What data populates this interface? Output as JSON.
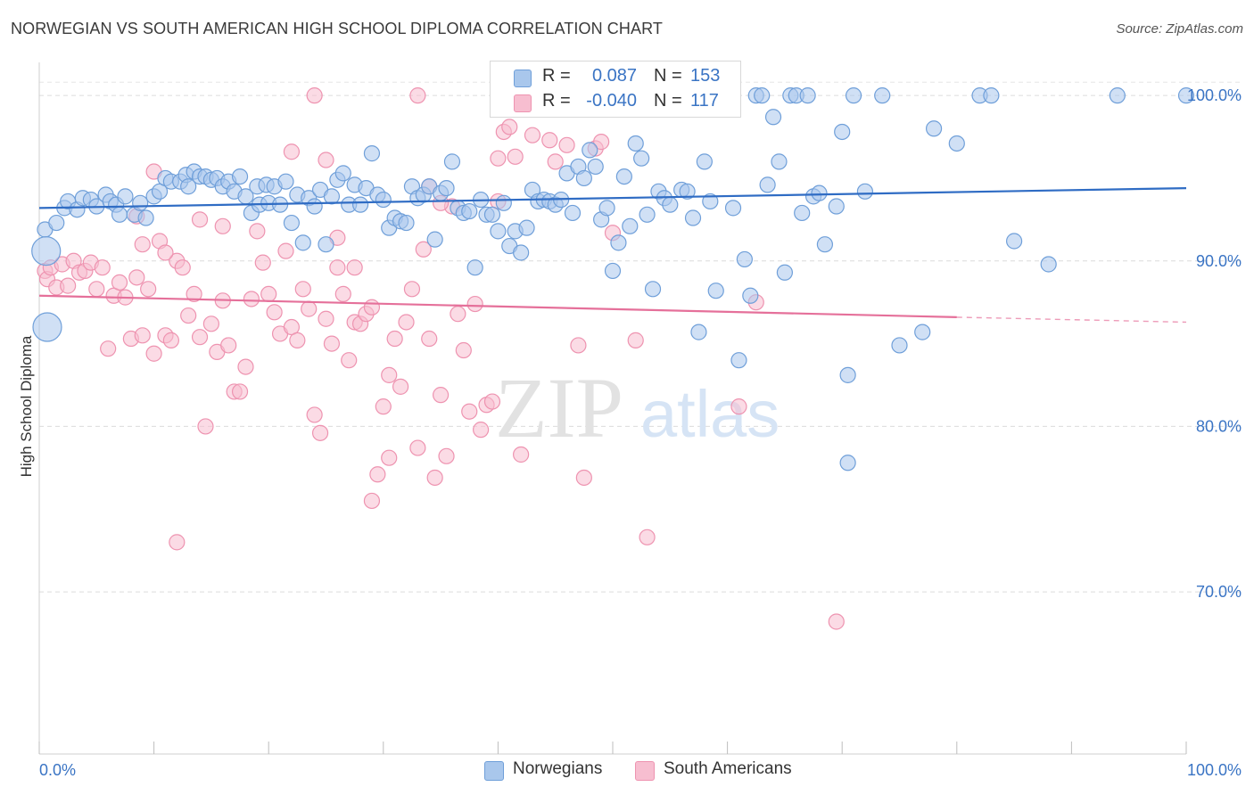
{
  "title": "NORWEGIAN VS SOUTH AMERICAN HIGH SCHOOL DIPLOMA CORRELATION CHART",
  "source": "Source: ZipAtlas.com",
  "watermark": {
    "zip": "ZIP",
    "atlas": "atlas"
  },
  "legend": {
    "r_label": "R =",
    "n_label": "N =",
    "series": [
      {
        "name": "Norwegians",
        "r": "0.087",
        "n": "153"
      },
      {
        "name": "South Americans",
        "r": "-0.040",
        "n": "117"
      }
    ]
  },
  "chart_data": {
    "type": "scatter",
    "title": "NORWEGIAN VS SOUTH AMERICAN HIGH SCHOOL DIPLOMA CORRELATION CHART",
    "xlabel": "",
    "ylabel": "High School Diploma",
    "xlim": [
      0,
      100
    ],
    "ylim": [
      60.2,
      102.0
    ],
    "x_tick_labels": [
      "0.0%",
      "100.0%"
    ],
    "y_ticks": [
      70,
      80,
      90,
      100
    ],
    "y_tick_labels": [
      "70.0%",
      "80.0%",
      "90.0%",
      "100.0%"
    ],
    "grid": true,
    "colors": {
      "norwegians_fill": "#a9c7ec",
      "norwegians_edge": "#6f9fd9",
      "norwegians_line": "#2f6cc4",
      "south_fill": "#f7bed0",
      "south_edge": "#ee93b0",
      "south_line": "#e5709a",
      "tick_text": "#3a74c4"
    },
    "series": [
      {
        "name": "Norwegians",
        "trend": {
          "x": [
            0,
            100
          ],
          "y": [
            93.2,
            94.4
          ]
        },
        "points": [
          [
            0.5,
            91.9
          ],
          [
            0.6,
            90.6
          ],
          [
            0.7,
            86.0
          ],
          [
            1.5,
            92.3
          ],
          [
            2.2,
            93.2
          ],
          [
            2.5,
            93.6
          ],
          [
            3.3,
            93.1
          ],
          [
            3.8,
            93.8
          ],
          [
            4.5,
            93.7
          ],
          [
            5.0,
            93.3
          ],
          [
            5.8,
            94.0
          ],
          [
            6.2,
            93.6
          ],
          [
            6.7,
            93.4
          ],
          [
            7.0,
            92.8
          ],
          [
            7.5,
            93.9
          ],
          [
            8.3,
            92.8
          ],
          [
            8.8,
            93.5
          ],
          [
            9.3,
            92.6
          ],
          [
            10.0,
            93.9
          ],
          [
            10.5,
            94.2
          ],
          [
            11.0,
            95.0
          ],
          [
            11.5,
            94.8
          ],
          [
            12.3,
            94.8
          ],
          [
            12.8,
            95.2
          ],
          [
            13.0,
            94.5
          ],
          [
            13.5,
            95.4
          ],
          [
            14.0,
            95.1
          ],
          [
            14.5,
            95.1
          ],
          [
            15.0,
            94.9
          ],
          [
            15.5,
            95.0
          ],
          [
            16.0,
            94.5
          ],
          [
            16.5,
            94.8
          ],
          [
            17.0,
            94.2
          ],
          [
            17.5,
            95.1
          ],
          [
            18.0,
            93.9
          ],
          [
            18.5,
            92.9
          ],
          [
            19.0,
            94.5
          ],
          [
            19.2,
            93.4
          ],
          [
            19.8,
            94.6
          ],
          [
            20.0,
            93.5
          ],
          [
            20.5,
            94.5
          ],
          [
            21.0,
            93.4
          ],
          [
            21.5,
            94.8
          ],
          [
            22.0,
            92.3
          ],
          [
            22.5,
            94.0
          ],
          [
            23.0,
            91.1
          ],
          [
            23.5,
            93.8
          ],
          [
            24.0,
            93.3
          ],
          [
            24.5,
            94.3
          ],
          [
            25.0,
            91.0
          ],
          [
            25.5,
            93.9
          ],
          [
            26.0,
            94.9
          ],
          [
            26.5,
            95.3
          ],
          [
            27.0,
            93.4
          ],
          [
            27.5,
            94.6
          ],
          [
            28.0,
            93.4
          ],
          [
            28.5,
            94.4
          ],
          [
            29.0,
            96.5
          ],
          [
            29.5,
            94.0
          ],
          [
            30.0,
            93.7
          ],
          [
            30.5,
            92.0
          ],
          [
            31.0,
            92.6
          ],
          [
            31.5,
            92.4
          ],
          [
            32.0,
            92.3
          ],
          [
            32.5,
            94.5
          ],
          [
            33.0,
            93.8
          ],
          [
            33.5,
            94.0
          ],
          [
            34.0,
            94.5
          ],
          [
            34.5,
            91.3
          ],
          [
            35.0,
            94.1
          ],
          [
            35.5,
            94.4
          ],
          [
            36.0,
            96.0
          ],
          [
            36.5,
            93.2
          ],
          [
            37.0,
            92.9
          ],
          [
            37.5,
            93.0
          ],
          [
            38.0,
            89.6
          ],
          [
            38.5,
            93.7
          ],
          [
            39.0,
            92.8
          ],
          [
            39.5,
            92.8
          ],
          [
            40.0,
            91.8
          ],
          [
            40.5,
            93.5
          ],
          [
            41.0,
            90.9
          ],
          [
            41.5,
            91.8
          ],
          [
            42.0,
            90.5
          ],
          [
            42.5,
            92.0
          ],
          [
            43.0,
            94.3
          ],
          [
            43.5,
            93.6
          ],
          [
            44.0,
            93.7
          ],
          [
            44.5,
            93.6
          ],
          [
            45.0,
            93.4
          ],
          [
            45.5,
            93.7
          ],
          [
            46.0,
            95.3
          ],
          [
            46.5,
            92.9
          ],
          [
            47.0,
            95.7
          ],
          [
            47.5,
            95.0
          ],
          [
            48.0,
            96.7
          ],
          [
            48.5,
            95.7
          ],
          [
            49.0,
            92.5
          ],
          [
            49.5,
            93.2
          ],
          [
            50.0,
            89.4
          ],
          [
            50.5,
            91.1
          ],
          [
            51.0,
            95.1
          ],
          [
            51.5,
            92.1
          ],
          [
            52.0,
            97.1
          ],
          [
            52.5,
            96.2
          ],
          [
            53.0,
            92.8
          ],
          [
            53.5,
            88.3
          ],
          [
            54.0,
            94.2
          ],
          [
            54.5,
            93.8
          ],
          [
            55.0,
            93.4
          ],
          [
            56.0,
            94.3
          ],
          [
            56.5,
            94.2
          ],
          [
            57.0,
            92.6
          ],
          [
            57.5,
            85.7
          ],
          [
            58.0,
            96.0
          ],
          [
            58.5,
            93.6
          ],
          [
            59.0,
            88.2
          ],
          [
            60.0,
            100.0
          ],
          [
            60.5,
            93.2
          ],
          [
            61.0,
            84.0
          ],
          [
            61.5,
            90.1
          ],
          [
            62.0,
            87.9
          ],
          [
            62.5,
            100.0
          ],
          [
            63.0,
            100.0
          ],
          [
            63.5,
            94.6
          ],
          [
            64.0,
            98.7
          ],
          [
            64.5,
            96.0
          ],
          [
            65.0,
            89.3
          ],
          [
            65.5,
            100.0
          ],
          [
            66.0,
            100.0
          ],
          [
            66.5,
            92.9
          ],
          [
            67.0,
            100.0
          ],
          [
            67.5,
            93.9
          ],
          [
            68.0,
            94.1
          ],
          [
            68.5,
            91.0
          ],
          [
            69.5,
            93.3
          ],
          [
            70.0,
            97.8
          ],
          [
            70.5,
            83.1
          ],
          [
            71.0,
            100.0
          ],
          [
            72.0,
            94.2
          ],
          [
            73.5,
            100.0
          ],
          [
            75.0,
            84.9
          ],
          [
            77.0,
            85.7
          ],
          [
            78.0,
            98.0
          ],
          [
            80.0,
            97.1
          ],
          [
            82.0,
            100.0
          ],
          [
            83.0,
            100.0
          ],
          [
            85.0,
            91.2
          ],
          [
            88.0,
            89.8
          ],
          [
            94.0,
            100.0
          ],
          [
            70.5,
            77.8
          ],
          [
            100.0,
            100.0
          ]
        ]
      },
      {
        "name": "South Americans",
        "trend": {
          "x": [
            0,
            80
          ],
          "y": [
            87.9,
            86.6
          ],
          "dashed_to": {
            "x": 100,
            "y": 86.3
          }
        },
        "points": [
          [
            0.5,
            89.4
          ],
          [
            0.7,
            88.9
          ],
          [
            1.0,
            89.6
          ],
          [
            1.5,
            88.4
          ],
          [
            2.0,
            89.8
          ],
          [
            2.5,
            88.5
          ],
          [
            3.0,
            90.0
          ],
          [
            3.5,
            89.3
          ],
          [
            4.0,
            89.4
          ],
          [
            4.5,
            89.9
          ],
          [
            5.0,
            88.3
          ],
          [
            5.5,
            89.6
          ],
          [
            6.0,
            84.7
          ],
          [
            6.5,
            87.9
          ],
          [
            7.0,
            88.7
          ],
          [
            7.5,
            87.8
          ],
          [
            8.0,
            85.3
          ],
          [
            8.5,
            89.0
          ],
          [
            9.0,
            85.5
          ],
          [
            9.5,
            88.3
          ],
          [
            10.0,
            84.4
          ],
          [
            10.5,
            91.2
          ],
          [
            11.0,
            85.5
          ],
          [
            11.5,
            85.2
          ],
          [
            12.0,
            90.0
          ],
          [
            12.5,
            89.6
          ],
          [
            13.0,
            86.7
          ],
          [
            13.5,
            88.0
          ],
          [
            14.0,
            85.4
          ],
          [
            14.5,
            80.0
          ],
          [
            15.0,
            86.2
          ],
          [
            15.5,
            84.5
          ],
          [
            16.0,
            87.6
          ],
          [
            16.5,
            84.9
          ],
          [
            17.0,
            82.1
          ],
          [
            17.5,
            82.1
          ],
          [
            18.0,
            83.6
          ],
          [
            18.5,
            87.7
          ],
          [
            19.0,
            91.8
          ],
          [
            19.5,
            89.9
          ],
          [
            20.0,
            88.0
          ],
          [
            20.5,
            86.9
          ],
          [
            21.0,
            85.6
          ],
          [
            21.5,
            90.6
          ],
          [
            22.0,
            86.0
          ],
          [
            22.5,
            85.2
          ],
          [
            23.0,
            88.3
          ],
          [
            23.5,
            87.1
          ],
          [
            24.0,
            80.7
          ],
          [
            24.5,
            79.6
          ],
          [
            25.0,
            86.5
          ],
          [
            25.5,
            85.0
          ],
          [
            26.0,
            89.6
          ],
          [
            26.5,
            88.0
          ],
          [
            27.0,
            84.0
          ],
          [
            27.5,
            86.3
          ],
          [
            28.0,
            86.2
          ],
          [
            28.5,
            86.8
          ],
          [
            29.0,
            75.5
          ],
          [
            29.5,
            77.1
          ],
          [
            30.0,
            81.2
          ],
          [
            30.5,
            83.1
          ],
          [
            31.0,
            85.3
          ],
          [
            31.5,
            82.4
          ],
          [
            32.0,
            86.3
          ],
          [
            32.5,
            88.3
          ],
          [
            33.0,
            78.7
          ],
          [
            33.5,
            90.7
          ],
          [
            34.0,
            85.3
          ],
          [
            34.5,
            76.9
          ],
          [
            35.0,
            81.9
          ],
          [
            35.5,
            78.2
          ],
          [
            36.0,
            93.3
          ],
          [
            36.5,
            86.8
          ],
          [
            37.0,
            84.6
          ],
          [
            37.5,
            80.9
          ],
          [
            38.0,
            87.4
          ],
          [
            38.5,
            79.8
          ],
          [
            39.0,
            81.3
          ],
          [
            39.5,
            81.5
          ],
          [
            40.0,
            96.2
          ],
          [
            40.5,
            97.8
          ],
          [
            41.0,
            98.1
          ],
          [
            41.5,
            96.3
          ],
          [
            42.0,
            78.3
          ],
          [
            42.5,
            100.0
          ],
          [
            43.0,
            97.6
          ],
          [
            44.0,
            100.0
          ],
          [
            44.5,
            97.3
          ],
          [
            45.0,
            96.0
          ],
          [
            46.0,
            97.0
          ],
          [
            47.0,
            84.9
          ],
          [
            47.5,
            76.9
          ],
          [
            48.5,
            96.8
          ],
          [
            49.0,
            97.2
          ],
          [
            50.0,
            91.7
          ],
          [
            52.0,
            85.2
          ],
          [
            53.0,
            73.3
          ],
          [
            61.0,
            81.2
          ],
          [
            62.5,
            87.5
          ],
          [
            69.5,
            68.2
          ],
          [
            8.5,
            92.7
          ],
          [
            9.0,
            91.0
          ],
          [
            10.0,
            95.4
          ],
          [
            11.0,
            90.5
          ],
          [
            12.0,
            73.0
          ],
          [
            14.0,
            92.5
          ],
          [
            16.0,
            92.1
          ],
          [
            22.0,
            96.6
          ],
          [
            24.0,
            100.0
          ],
          [
            25.0,
            96.1
          ],
          [
            26.0,
            91.4
          ],
          [
            27.5,
            89.6
          ],
          [
            29.0,
            87.2
          ],
          [
            30.5,
            78.1
          ],
          [
            34.0,
            94.5
          ],
          [
            35.0,
            93.5
          ],
          [
            33.0,
            100.0
          ],
          [
            40.0,
            93.6
          ]
        ]
      }
    ]
  }
}
